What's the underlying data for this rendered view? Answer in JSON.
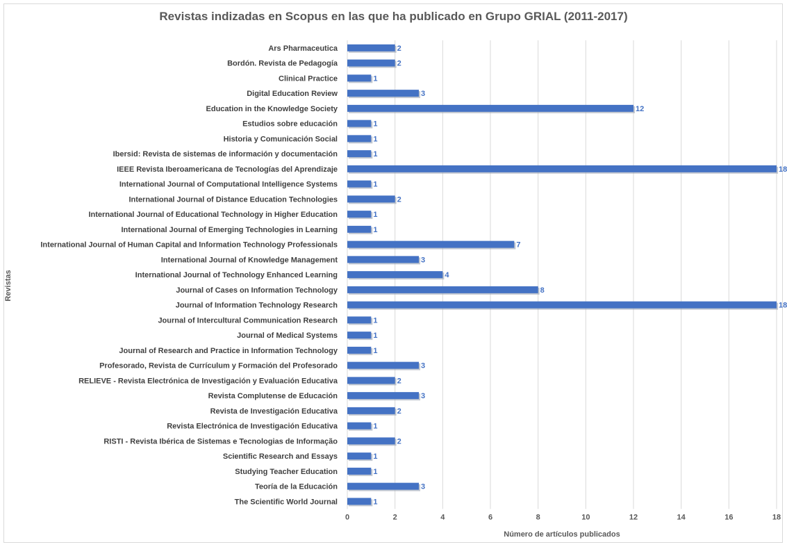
{
  "chart_data": {
    "type": "bar",
    "orientation": "horizontal",
    "title": "Revistas indizadas en Scopus en las que ha publicado en Grupo GRIAL (2011-2017)",
    "xlabel": "Número de artículos publicados",
    "ylabel": "Revistas",
    "xlim": [
      0,
      18
    ],
    "xticks": [
      0,
      2,
      4,
      6,
      8,
      10,
      12,
      14,
      16,
      18
    ],
    "grid": true,
    "bar_color": "#4472c4",
    "label_color": "#4472c4",
    "categories": [
      "Ars Pharmaceutica",
      "Bordón. Revista de Pedagogía",
      "Clinical Practice",
      "Digital Education Review",
      "Education in the Knowledge Society",
      "Estudios sobre educación",
      "Historia y Comunicación Social",
      "Ibersid: Revista de sistemas de información y documentación",
      "IEEE Revista Iberoamericana de Tecnologías del Aprendizaje",
      "International Journal of Computational Intelligence Systems",
      "International Journal of Distance Education Technologies",
      "International Journal of Educational Technology in Higher Education",
      "International Journal of Emerging Technologies in Learning",
      "International Journal of Human Capital and Information Technology Professionals",
      "International Journal of Knowledge Management",
      "International Journal of Technology Enhanced Learning",
      "Journal of Cases on Information Technology",
      "Journal of Information Technology Research",
      "Journal of Intercultural Communication Research",
      "Journal of Medical Systems",
      "Journal of Research and Practice in Information Technology",
      "Profesorado, Revista de Currículum y Formación del Profesorado",
      "RELIEVE - Revista Electrónica de Investigación y Evaluación Educativa",
      "Revista Complutense de Educación",
      "Revista de Investigación Educativa",
      "Revista Electrónica de Investigación Educativa",
      "RISTI - Revista Ibérica de Sistemas e Tecnologias de Informação",
      "Scientific Research and Essays",
      "Studying Teacher Education",
      "Teoría de la Educación",
      "The Scientific World Journal"
    ],
    "values": [
      2,
      2,
      1,
      3,
      12,
      1,
      1,
      1,
      18,
      1,
      2,
      1,
      1,
      7,
      3,
      4,
      8,
      18,
      1,
      1,
      1,
      3,
      2,
      3,
      2,
      1,
      2,
      1,
      1,
      3,
      1
    ]
  }
}
